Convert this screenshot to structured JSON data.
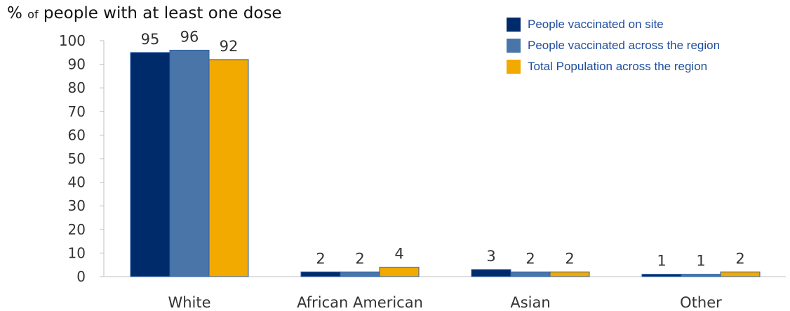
{
  "chart_data": {
    "type": "bar",
    "title_prefix": "%",
    "title_small": "of",
    "title_rest": "people with at least one dose",
    "categories": [
      "White",
      "African American",
      "Asian",
      "Other"
    ],
    "series": [
      {
        "name": "People vaccinated on site",
        "color": "#002b6b",
        "values": [
          95,
          2,
          3,
          1
        ]
      },
      {
        "name": "People vaccinated across the region",
        "color": "#4a75a8",
        "values": [
          96,
          2,
          2,
          1
        ]
      },
      {
        "name": "Total Population across the region",
        "color": "#f2a900",
        "values": [
          92,
          4,
          2,
          2
        ]
      }
    ],
    "ylim": [
      0,
      100
    ],
    "yticks": [
      0,
      10,
      20,
      30,
      40,
      50,
      60,
      70,
      80,
      90,
      100
    ],
    "grid": false,
    "legend_position": "top-right"
  }
}
